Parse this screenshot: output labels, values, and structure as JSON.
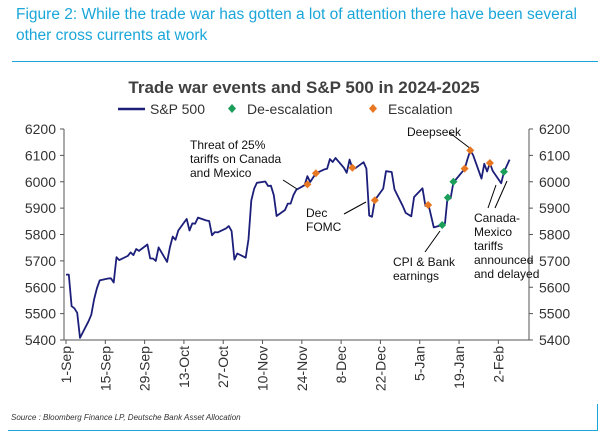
{
  "figure_title": "Figure 2: While the trade war has gotten a lot of attention there have been several other cross currents at work",
  "source": "Source : Bloomberg Finance LP, Deutsche Bank Asset Allocation",
  "colors": {
    "accent": "#1aa6d9",
    "line": "#1c1f7a",
    "de_escalation": "#1a9e5a",
    "escalation": "#e87722"
  },
  "chart_data": {
    "type": "line",
    "title": "Trade war events and S&P 500 in 2024-2025",
    "legend": {
      "placement": "top",
      "entries": [
        "S&P 500",
        "De-escalation",
        "Escalation"
      ]
    },
    "y_ticks": [
      5400,
      5500,
      5600,
      5700,
      5800,
      5900,
      6000,
      6100,
      6200
    ],
    "ylim": [
      5400,
      6200
    ],
    "grid": false,
    "x_ticks": [
      "1-Sep",
      "15-Sep",
      "29-Sep",
      "13-Oct",
      "27-Oct",
      "10-Nov",
      "24-Nov",
      "8-Dec",
      "22-Dec",
      "5-Jan",
      "19-Jan",
      "2-Feb"
    ],
    "series": [
      {
        "name": "S&P 500",
        "points": [
          [
            "2024-09-01",
            5648
          ],
          [
            "2024-09-02",
            5648
          ],
          [
            "2024-09-03",
            5528
          ],
          [
            "2024-09-04",
            5520
          ],
          [
            "2024-09-05",
            5503
          ],
          [
            "2024-09-06",
            5408
          ],
          [
            "2024-09-09",
            5471
          ],
          [
            "2024-09-10",
            5496
          ],
          [
            "2024-09-11",
            5554
          ],
          [
            "2024-09-12",
            5596
          ],
          [
            "2024-09-13",
            5626
          ],
          [
            "2024-09-16",
            5633
          ],
          [
            "2024-09-17",
            5634
          ],
          [
            "2024-09-18",
            5618
          ],
          [
            "2024-09-19",
            5714
          ],
          [
            "2024-09-20",
            5703
          ],
          [
            "2024-09-23",
            5719
          ],
          [
            "2024-09-24",
            5732
          ],
          [
            "2024-09-25",
            5722
          ],
          [
            "2024-09-26",
            5745
          ],
          [
            "2024-09-27",
            5738
          ],
          [
            "2024-09-30",
            5762
          ],
          [
            "2024-10-01",
            5709
          ],
          [
            "2024-10-02",
            5709
          ],
          [
            "2024-10-03",
            5700
          ],
          [
            "2024-10-04",
            5751
          ],
          [
            "2024-10-07",
            5696
          ],
          [
            "2024-10-08",
            5751
          ],
          [
            "2024-10-09",
            5792
          ],
          [
            "2024-10-10",
            5780
          ],
          [
            "2024-10-11",
            5815
          ],
          [
            "2024-10-14",
            5859
          ],
          [
            "2024-10-15",
            5815
          ],
          [
            "2024-10-16",
            5842
          ],
          [
            "2024-10-17",
            5841
          ],
          [
            "2024-10-18",
            5864
          ],
          [
            "2024-10-21",
            5853
          ],
          [
            "2024-10-22",
            5851
          ],
          [
            "2024-10-23",
            5797
          ],
          [
            "2024-10-24",
            5809
          ],
          [
            "2024-10-25",
            5808
          ],
          [
            "2024-10-28",
            5823
          ],
          [
            "2024-10-29",
            5832
          ],
          [
            "2024-10-30",
            5813
          ],
          [
            "2024-10-31",
            5705
          ],
          [
            "2024-11-01",
            5728
          ],
          [
            "2024-11-04",
            5712
          ],
          [
            "2024-11-05",
            5782
          ],
          [
            "2024-11-06",
            5929
          ],
          [
            "2024-11-07",
            5973
          ],
          [
            "2024-11-08",
            5996
          ],
          [
            "2024-11-11",
            6001
          ],
          [
            "2024-11-12",
            5984
          ],
          [
            "2024-11-13",
            5985
          ],
          [
            "2024-11-14",
            5949
          ],
          [
            "2024-11-15",
            5870
          ],
          [
            "2024-11-18",
            5893
          ],
          [
            "2024-11-19",
            5917
          ],
          [
            "2024-11-20",
            5917
          ],
          [
            "2024-11-21",
            5949
          ],
          [
            "2024-11-22",
            5969
          ],
          [
            "2024-11-25",
            5987
          ],
          [
            "2024-11-26",
            6021
          ],
          [
            "2024-11-27",
            5999
          ],
          [
            "2024-11-29",
            6032
          ],
          [
            "2024-12-02",
            6047
          ],
          [
            "2024-12-03",
            6049
          ],
          [
            "2024-12-04",
            6086
          ],
          [
            "2024-12-05",
            6075
          ],
          [
            "2024-12-06",
            6090
          ],
          [
            "2024-12-09",
            6053
          ],
          [
            "2024-12-10",
            6034
          ],
          [
            "2024-12-11",
            6084
          ],
          [
            "2024-12-12",
            6051
          ],
          [
            "2024-12-13",
            6051
          ],
          [
            "2024-12-16",
            6074
          ],
          [
            "2024-12-17",
            6050
          ],
          [
            "2024-12-18",
            5872
          ],
          [
            "2024-12-19",
            5867
          ],
          [
            "2024-12-20",
            5930
          ],
          [
            "2024-12-23",
            5974
          ],
          [
            "2024-12-24",
            6040
          ],
          [
            "2024-12-26",
            6037
          ],
          [
            "2024-12-27",
            5971
          ],
          [
            "2024-12-30",
            5907
          ],
          [
            "2024-12-31",
            5882
          ],
          [
            "2025-01-02",
            5869
          ],
          [
            "2025-01-03",
            5942
          ],
          [
            "2025-01-06",
            5975
          ],
          [
            "2025-01-07",
            5909
          ],
          [
            "2025-01-08",
            5918
          ],
          [
            "2025-01-10",
            5827
          ],
          [
            "2025-01-13",
            5836
          ],
          [
            "2025-01-14",
            5843
          ],
          [
            "2025-01-15",
            5950
          ],
          [
            "2025-01-16",
            5937
          ],
          [
            "2025-01-17",
            5997
          ],
          [
            "2025-01-21",
            6049
          ],
          [
            "2025-01-22",
            6086
          ],
          [
            "2025-01-23",
            6119
          ],
          [
            "2025-01-24",
            6101
          ],
          [
            "2025-01-27",
            6012
          ],
          [
            "2025-01-28",
            6068
          ],
          [
            "2025-01-29",
            6039
          ],
          [
            "2025-01-30",
            6071
          ],
          [
            "2025-01-31",
            6041
          ],
          [
            "2025-02-03",
            5994
          ],
          [
            "2025-02-04",
            6038
          ],
          [
            "2025-02-05",
            6061
          ],
          [
            "2025-02-06",
            6084
          ]
        ]
      }
    ],
    "events": {
      "de_escalation": [
        [
          "2025-01-13",
          5836
        ],
        [
          "2025-01-15",
          5940
        ],
        [
          "2025-01-17",
          6000
        ],
        [
          "2025-02-04",
          6038
        ]
      ],
      "escalation": [
        [
          "2024-11-26",
          5990
        ],
        [
          "2024-11-29",
          6032
        ],
        [
          "2024-12-12",
          6053
        ],
        [
          "2024-12-20",
          5930
        ],
        [
          "2025-01-08",
          5912
        ],
        [
          "2025-01-21",
          6050
        ],
        [
          "2025-01-23",
          6119
        ],
        [
          "2025-01-30",
          6071
        ]
      ]
    },
    "annotations": [
      [
        "Threat of 25%",
        "tariffs on Canada",
        "and Mexico"
      ],
      [
        "Dec",
        "FOMC"
      ],
      [
        "Deepseek"
      ],
      [
        "CPI & Bank",
        "earnings"
      ],
      [
        "Canada-",
        "Mexico",
        "tariffs",
        "announced",
        "and delayed"
      ]
    ]
  }
}
